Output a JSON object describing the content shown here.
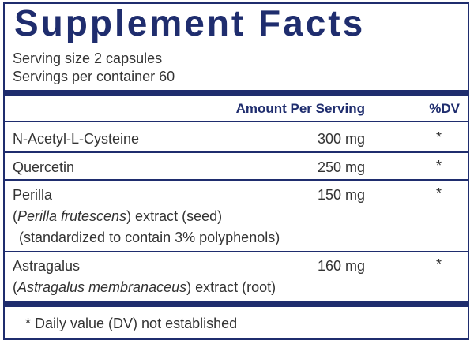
{
  "header": {
    "title": "Supplement Facts",
    "serving_size": "Serving size  2 capsules",
    "servings_per_container": "Servings per container  60"
  },
  "table": {
    "columns": [
      "Amount Per Serving",
      "%DV"
    ],
    "rows": [
      {
        "name": "N-Acetyl-L-Cysteine",
        "amount": "300 mg",
        "dv": "*"
      },
      {
        "name": "Quercetin",
        "amount": "250 mg",
        "dv": "*"
      },
      {
        "name": "Perilla",
        "amount": "150 mg",
        "dv": "*",
        "detail": [
          "(",
          "Perilla frutescens",
          ") extract (seed)"
        ],
        "note": "(standardized to contain 3% polyphenols)"
      },
      {
        "name": "Astragalus",
        "amount": "160 mg",
        "dv": "*",
        "detail": [
          "(",
          "Astragalus membranaceus",
          ") extract (root)"
        ]
      }
    ]
  },
  "footnote": "* Daily value (DV) not established"
}
